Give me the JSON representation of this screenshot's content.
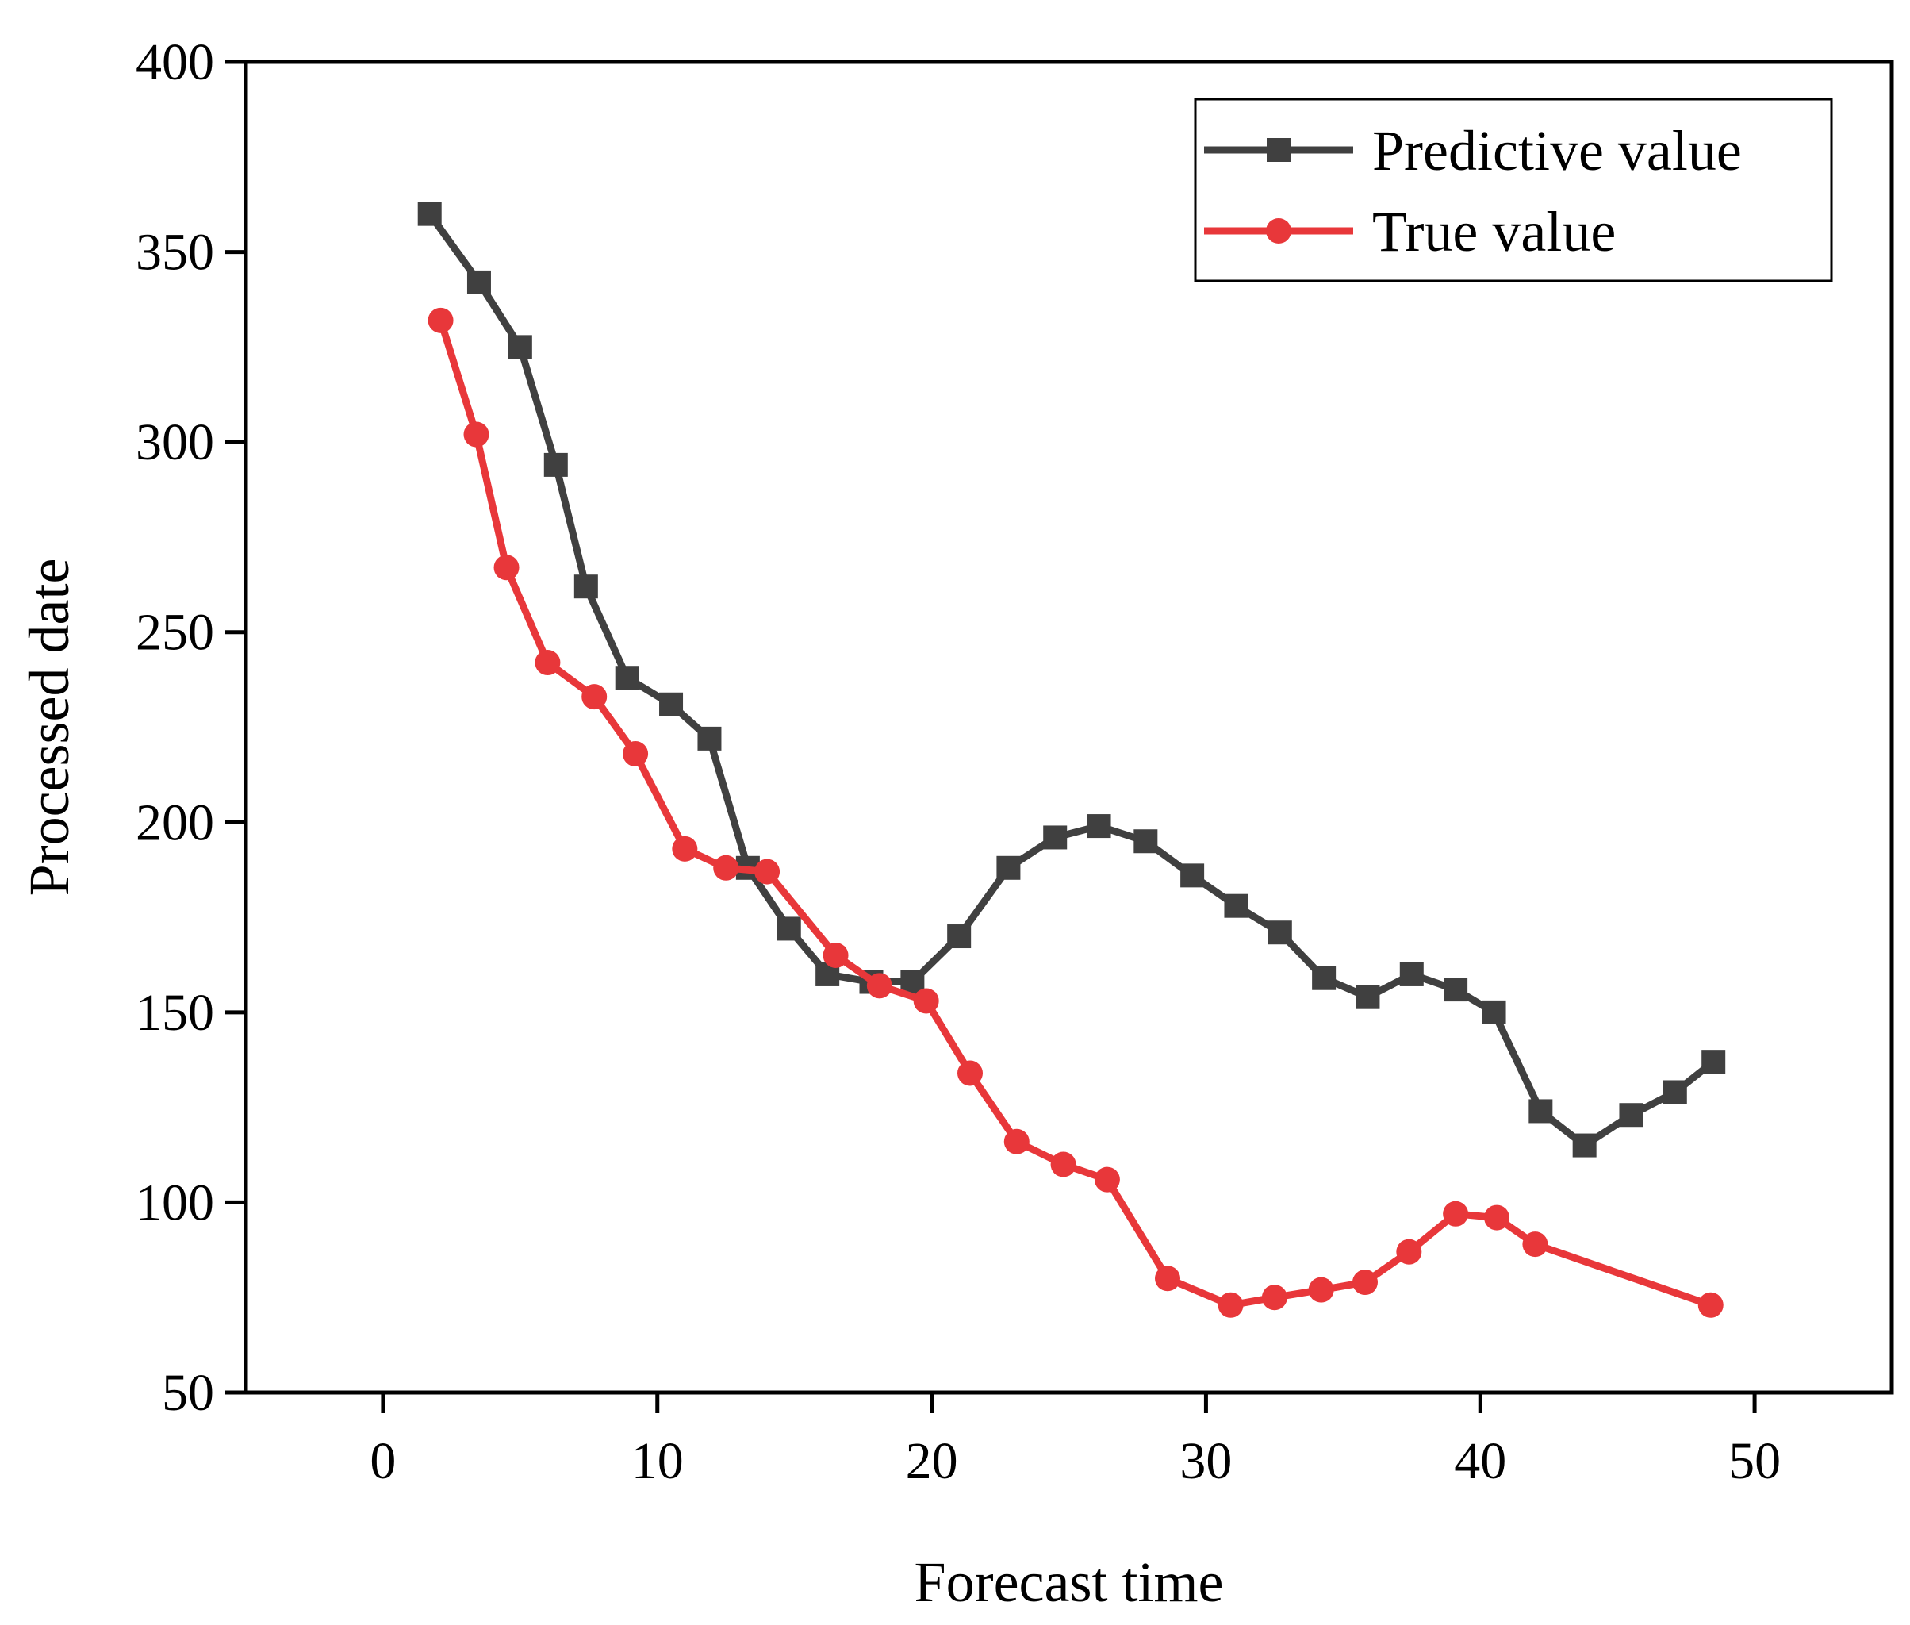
{
  "chart_data": {
    "type": "line",
    "title": "",
    "xlabel": "Forecast time",
    "ylabel": "Processed date",
    "xlim": [
      -5,
      55
    ],
    "ylim": [
      50,
      400
    ],
    "xticks": [
      0,
      10,
      20,
      30,
      40,
      50
    ],
    "yticks": [
      50,
      100,
      150,
      200,
      250,
      300,
      350,
      400
    ],
    "legend_position": "top-right",
    "grid": false,
    "series": [
      {
        "name": "Predictive value",
        "color": "#404040",
        "marker": "square",
        "x": [
          1.7,
          3.5,
          5.0,
          6.3,
          7.4,
          8.9,
          10.5,
          11.9,
          13.3,
          14.8,
          16.2,
          17.8,
          19.3,
          21.0,
          22.8,
          24.5,
          26.1,
          27.8,
          29.5,
          31.1,
          32.7,
          34.3,
          35.9,
          37.5,
          39.1,
          40.5,
          42.2,
          43.8,
          45.5,
          47.1,
          48.5
        ],
        "y": [
          360,
          342,
          325,
          294,
          262,
          238,
          231,
          222,
          188,
          172,
          160,
          158,
          158,
          170,
          188,
          196,
          199,
          195,
          186,
          178,
          171,
          159,
          154,
          160,
          156,
          150,
          124,
          115,
          123,
          129,
          137
        ]
      },
      {
        "name": "True value",
        "color": "#e8373a",
        "marker": "circle",
        "x": [
          2.1,
          3.4,
          4.5,
          6.0,
          7.7,
          9.2,
          11.0,
          12.5,
          14.0,
          16.5,
          18.1,
          19.8,
          21.4,
          23.1,
          24.8,
          26.4,
          28.6,
          30.9,
          32.5,
          34.2,
          35.8,
          37.4,
          39.1,
          40.6,
          42.0,
          48.4
        ],
        "y": [
          332,
          302,
          267,
          242,
          233,
          218,
          193,
          188,
          187,
          165,
          157,
          153,
          134,
          116,
          110,
          106,
          80,
          73,
          75,
          77,
          79,
          87,
          97,
          96,
          89,
          73
        ]
      }
    ]
  }
}
